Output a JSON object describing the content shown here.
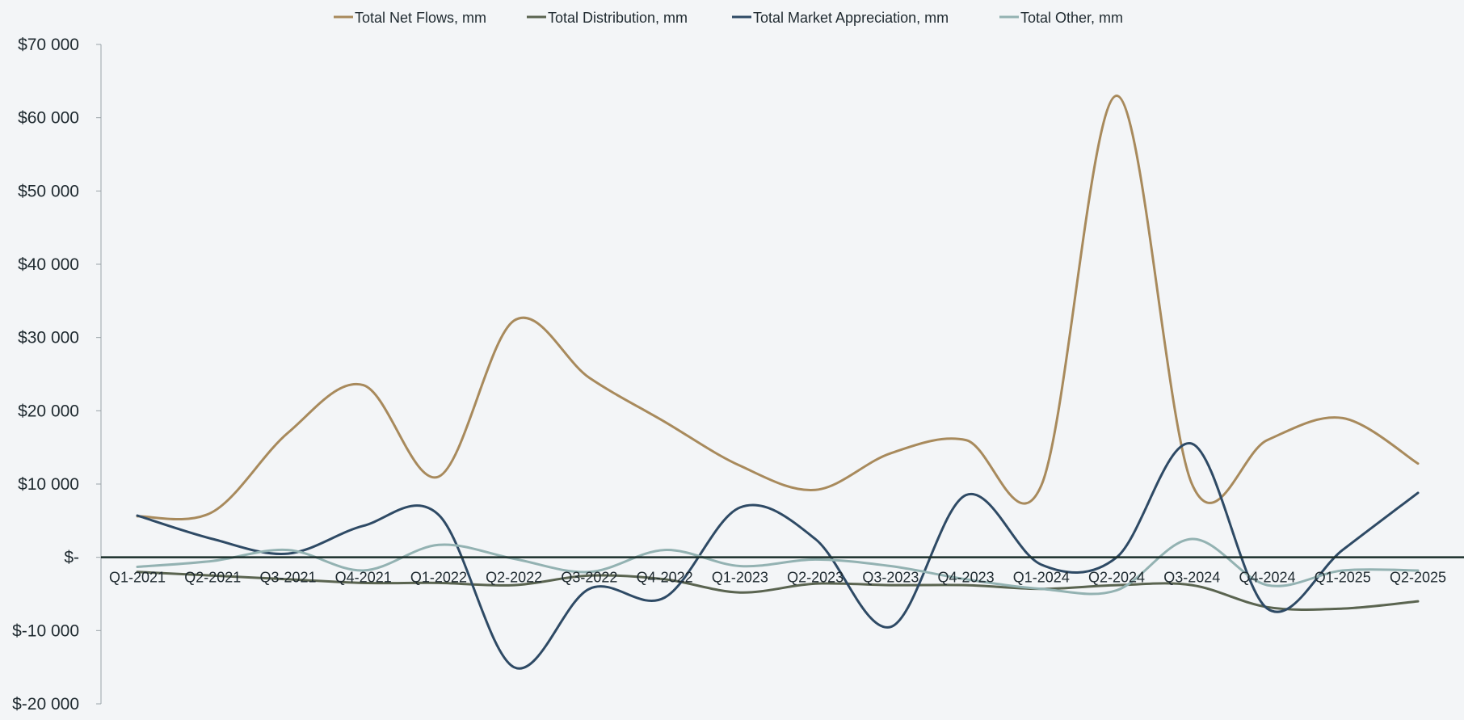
{
  "chart_data": {
    "type": "line",
    "title": "",
    "xlabel": "",
    "ylabel": "",
    "ylim": [
      -20000,
      70000
    ],
    "yticks": [
      {
        "value": 70000,
        "label": "$70 000"
      },
      {
        "value": 60000,
        "label": "$60 000"
      },
      {
        "value": 50000,
        "label": "$50 000"
      },
      {
        "value": 40000,
        "label": "$40 000"
      },
      {
        "value": 30000,
        "label": "$30 000"
      },
      {
        "value": 20000,
        "label": "$20 000"
      },
      {
        "value": 10000,
        "label": "$10 000"
      },
      {
        "value": 0,
        "label": "$-"
      },
      {
        "value": -10000,
        "label": "$-10 000"
      },
      {
        "value": -20000,
        "label": "$-20 000"
      }
    ],
    "categories": [
      "Q1-2021",
      "Q2-2021",
      "Q3-2021",
      "Q4-2021",
      "Q1-2022",
      "Q2-2022",
      "Q3-2022",
      "Q4-2022",
      "Q1-2023",
      "Q2-2023",
      "Q3-2023",
      "Q4-2023",
      "Q1-2024",
      "Q2-2024",
      "Q3-2024",
      "Q4-2024",
      "Q1-2025",
      "Q2-2025"
    ],
    "grid": false,
    "legend_position": "top-center",
    "series": [
      {
        "name": "Total Net Flows, mm",
        "color": "#a88a5c",
        "values": [
          5600,
          6200,
          17000,
          23500,
          11000,
          32300,
          24500,
          18500,
          12500,
          9200,
          14200,
          16000,
          9800,
          63000,
          10000,
          16000,
          19000,
          12800
        ]
      },
      {
        "name": "Total Distribution, mm",
        "color": "#5a6450",
        "values": [
          -2000,
          -2500,
          -3000,
          -3500,
          -3500,
          -3800,
          -2500,
          -3000,
          -4800,
          -3600,
          -3800,
          -3800,
          -4300,
          -3800,
          -3800,
          -6800,
          -7000,
          -6000
        ]
      },
      {
        "name": "Total Market Appreciation, mm",
        "color": "#2e4a65",
        "values": [
          5700,
          2500,
          500,
          4300,
          5800,
          -15000,
          -4300,
          -5500,
          6800,
          2500,
          -9500,
          8500,
          -1000,
          0,
          15500,
          -7000,
          1000,
          8800
        ]
      },
      {
        "name": "Total Other, mm",
        "color": "#93b2b2",
        "values": [
          -1300,
          -500,
          1000,
          -1800,
          1700,
          -200,
          -2000,
          1000,
          -1200,
          -300,
          -1200,
          -3000,
          -4300,
          -4500,
          2500,
          -3800,
          -1800,
          -1800
        ]
      }
    ]
  }
}
